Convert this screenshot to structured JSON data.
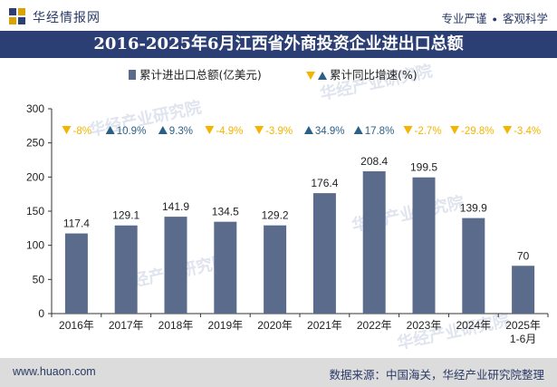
{
  "header": {
    "brand": "华经情报网",
    "tag1": "专业严谨",
    "tag2": "客观科学"
  },
  "footer": {
    "site": "www.huaon.com",
    "source": "数据来源：中国海关，华经产业研究院整理"
  },
  "watermark": "华经产业研究院",
  "colors": {
    "bar": "#5b6b8c",
    "title_bg": "#2b3f74",
    "up": "#2b5f86",
    "down": "#f4b400"
  },
  "chart_data": {
    "type": "bar",
    "title": "2016-2025年6月江西省外商投资企业进出口总额",
    "categories": [
      "2016年",
      "2017年",
      "2018年",
      "2019年",
      "2020年",
      "2021年",
      "2022年",
      "2023年",
      "2024年",
      "2025年1-6月"
    ],
    "series": [
      {
        "name": "累计进出口总额(亿美元)",
        "values": [
          117.4,
          129.1,
          141.9,
          134.5,
          129.2,
          176.4,
          208.4,
          199.5,
          139.9,
          70
        ],
        "value_labels": [
          "117.4",
          "129.1",
          "141.9",
          "134.5",
          "129.2",
          "176.4",
          "208.4",
          "199.5",
          "139.9",
          "70"
        ]
      },
      {
        "name": "累计同比增速(%)",
        "values": [
          -8,
          10.9,
          9.3,
          -4.9,
          -3.9,
          34.9,
          17.8,
          -2.7,
          -29.8,
          -3.4
        ],
        "value_labels": [
          "-8%",
          "10.9%",
          "9.3%",
          "-4.9%",
          "-3.9%",
          "34.9%",
          "17.8%",
          "-2.7%",
          "-29.8%",
          "-3.4%"
        ]
      }
    ],
    "yticks": [
      "0",
      "50",
      "100",
      "150",
      "200",
      "250",
      "300"
    ],
    "ylim": [
      0,
      300
    ],
    "legend_position": "top-center",
    "grid": false
  }
}
